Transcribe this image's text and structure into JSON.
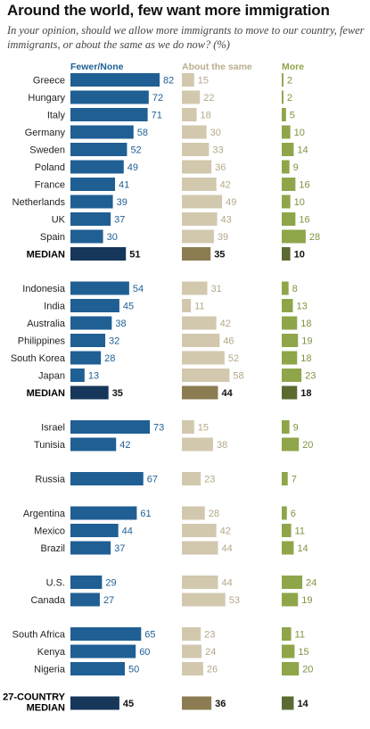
{
  "chart_data": {
    "type": "bar",
    "title": "Around the world, few want more immigration",
    "subtitle": "In your opinion, should we allow more immigrants to move to our country, fewer immigrants, or about the same as we do now? (%)",
    "series": [
      {
        "name": "Fewer/None",
        "color": "#1f5f94",
        "median_color": "#16365a"
      },
      {
        "name": "About the same",
        "color": "#d1c8ae",
        "median_color": "#8b7d51"
      },
      {
        "name": "More",
        "color": "#8fa54a",
        "median_color": "#5b6a32"
      }
    ],
    "value_colors": [
      "#1f5f94",
      "#b3a888",
      "#7d9440"
    ],
    "groups": [
      {
        "rows": [
          {
            "label": "Greece",
            "values": [
              82,
              15,
              2
            ]
          },
          {
            "label": "Hungary",
            "values": [
              72,
              22,
              2
            ]
          },
          {
            "label": "Italy",
            "values": [
              71,
              18,
              5
            ]
          },
          {
            "label": "Germany",
            "values": [
              58,
              30,
              10
            ]
          },
          {
            "label": "Sweden",
            "values": [
              52,
              33,
              14
            ]
          },
          {
            "label": "Poland",
            "values": [
              49,
              36,
              9
            ]
          },
          {
            "label": "France",
            "values": [
              41,
              42,
              16
            ]
          },
          {
            "label": "Netherlands",
            "values": [
              39,
              49,
              10
            ]
          },
          {
            "label": "UK",
            "values": [
              37,
              43,
              16
            ]
          },
          {
            "label": "Spain",
            "values": [
              30,
              39,
              28
            ]
          },
          {
            "label": "MEDIAN",
            "values": [
              51,
              35,
              10
            ],
            "median": true
          }
        ]
      },
      {
        "rows": [
          {
            "label": "Indonesia",
            "values": [
              54,
              31,
              8
            ]
          },
          {
            "label": "India",
            "values": [
              45,
              11,
              13
            ]
          },
          {
            "label": "Australia",
            "values": [
              38,
              42,
              18
            ]
          },
          {
            "label": "Philippines",
            "values": [
              32,
              46,
              19
            ]
          },
          {
            "label": "South Korea",
            "values": [
              28,
              52,
              18
            ]
          },
          {
            "label": "Japan",
            "values": [
              13,
              58,
              23
            ]
          },
          {
            "label": "MEDIAN",
            "values": [
              35,
              44,
              18
            ],
            "median": true
          }
        ]
      },
      {
        "rows": [
          {
            "label": "Israel",
            "values": [
              73,
              15,
              9
            ]
          },
          {
            "label": "Tunisia",
            "values": [
              42,
              38,
              20
            ]
          }
        ]
      },
      {
        "rows": [
          {
            "label": "Russia",
            "values": [
              67,
              23,
              7
            ]
          }
        ]
      },
      {
        "rows": [
          {
            "label": "Argentina",
            "values": [
              61,
              28,
              6
            ]
          },
          {
            "label": "Mexico",
            "values": [
              44,
              42,
              11
            ]
          },
          {
            "label": "Brazil",
            "values": [
              37,
              44,
              14
            ]
          }
        ]
      },
      {
        "rows": [
          {
            "label": "U.S.",
            "values": [
              29,
              44,
              24
            ]
          },
          {
            "label": "Canada",
            "values": [
              27,
              53,
              19
            ]
          }
        ]
      },
      {
        "rows": [
          {
            "label": "South Africa",
            "values": [
              65,
              23,
              11
            ]
          },
          {
            "label": "Kenya",
            "values": [
              60,
              24,
              15
            ]
          },
          {
            "label": "Nigeria",
            "values": [
              50,
              26,
              20
            ]
          }
        ]
      },
      {
        "rows": [
          {
            "label": "27-COUNTRY MEDIAN",
            "label_lines": [
              "27-COUNTRY",
              "MEDIAN"
            ],
            "values": [
              45,
              36,
              14
            ],
            "median": true
          }
        ]
      }
    ]
  }
}
